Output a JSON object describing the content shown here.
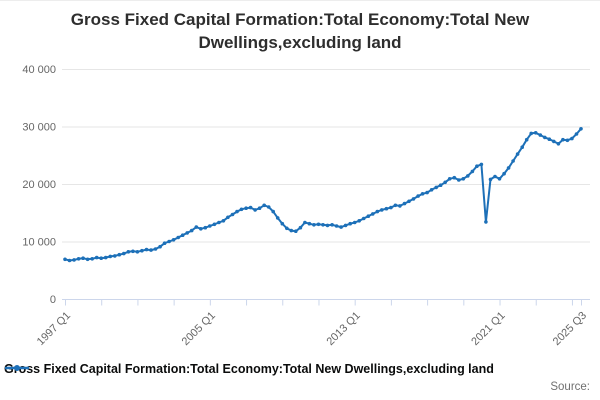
{
  "header": {
    "title_line1": "Gross Fixed Capital Formation:Total Economy:Total New",
    "title_line2": "Dwellings,excluding land"
  },
  "legend": {
    "label": "Gross Fixed Capital Formation:Total Economy:Total New Dwellings,excluding land"
  },
  "footer": {
    "source_label": "Source:"
  },
  "chart_data": {
    "type": "line",
    "title": "Gross Fixed Capital Formation:Total Economy:Total New Dwellings,excluding land",
    "xlabel": "",
    "ylabel": "",
    "ylim": [
      0,
      40000
    ],
    "grid": "horizontal",
    "legend_position": "bottom-left",
    "colors": {
      "line": "#1d70b8",
      "gridline": "#e6e6e6",
      "axis_line": "#ccd6eb",
      "axis_text": "#666666"
    },
    "y_ticks": [
      {
        "value": 0,
        "label": "0"
      },
      {
        "value": 10000,
        "label": "10 000"
      },
      {
        "value": 20000,
        "label": "20 000"
      },
      {
        "value": 30000,
        "label": "30 000"
      },
      {
        "value": 40000,
        "label": "40 000"
      }
    ],
    "x_ticks": [
      {
        "label": "1997 Q1",
        "index": 0
      },
      {
        "label": "2005 Q1",
        "index": 32
      },
      {
        "label": "2013 Q1",
        "index": 64
      },
      {
        "label": "2021 Q1",
        "index": 96
      },
      {
        "label": "2025 Q3",
        "index": 114
      }
    ],
    "minor_tick_every_quarters": 8,
    "quarters": [
      "1997 Q1",
      "1997 Q2",
      "1997 Q3",
      "1997 Q4",
      "1998 Q1",
      "1998 Q2",
      "1998 Q3",
      "1998 Q4",
      "1999 Q1",
      "1999 Q2",
      "1999 Q3",
      "1999 Q4",
      "2000 Q1",
      "2000 Q2",
      "2000 Q3",
      "2000 Q4",
      "2001 Q1",
      "2001 Q2",
      "2001 Q3",
      "2001 Q4",
      "2002 Q1",
      "2002 Q2",
      "2002 Q3",
      "2002 Q4",
      "2003 Q1",
      "2003 Q2",
      "2003 Q3",
      "2003 Q4",
      "2004 Q1",
      "2004 Q2",
      "2004 Q3",
      "2004 Q4",
      "2005 Q1",
      "2005 Q2",
      "2005 Q3",
      "2005 Q4",
      "2006 Q1",
      "2006 Q2",
      "2006 Q3",
      "2006 Q4",
      "2007 Q1",
      "2007 Q2",
      "2007 Q3",
      "2007 Q4",
      "2008 Q1",
      "2008 Q2",
      "2008 Q3",
      "2008 Q4",
      "2009 Q1",
      "2009 Q2",
      "2009 Q3",
      "2009 Q4",
      "2010 Q1",
      "2010 Q2",
      "2010 Q3",
      "2010 Q4",
      "2011 Q1",
      "2011 Q2",
      "2011 Q3",
      "2011 Q4",
      "2012 Q1",
      "2012 Q2",
      "2012 Q3",
      "2012 Q4",
      "2013 Q1",
      "2013 Q2",
      "2013 Q3",
      "2013 Q4",
      "2014 Q1",
      "2014 Q2",
      "2014 Q3",
      "2014 Q4",
      "2015 Q1",
      "2015 Q2",
      "2015 Q3",
      "2015 Q4",
      "2016 Q1",
      "2016 Q2",
      "2016 Q3",
      "2016 Q4",
      "2017 Q1",
      "2017 Q2",
      "2017 Q3",
      "2017 Q4",
      "2018 Q1",
      "2018 Q2",
      "2018 Q3",
      "2018 Q4",
      "2019 Q1",
      "2019 Q2",
      "2019 Q3",
      "2019 Q4",
      "2020 Q1",
      "2020 Q2",
      "2020 Q3",
      "2020 Q4",
      "2021 Q1",
      "2021 Q2",
      "2021 Q3",
      "2021 Q4",
      "2022 Q1",
      "2022 Q2",
      "2022 Q3",
      "2022 Q4",
      "2023 Q1",
      "2023 Q2",
      "2023 Q3",
      "2023 Q4",
      "2024 Q1",
      "2024 Q2",
      "2024 Q3",
      "2024 Q4",
      "2025 Q1",
      "2025 Q2",
      "2025 Q3"
    ],
    "series": [
      {
        "name": "Gross Fixed Capital Formation:Total Economy:Total New Dwellings,excluding land",
        "color": "#1d70b8",
        "values": [
          6900,
          6700,
          6800,
          7000,
          7100,
          6900,
          7000,
          7200,
          7100,
          7200,
          7400,
          7500,
          7700,
          7900,
          8200,
          8300,
          8200,
          8400,
          8600,
          8500,
          8700,
          9100,
          9700,
          10000,
          10300,
          10700,
          11100,
          11500,
          11900,
          12500,
          12200,
          12400,
          12700,
          13000,
          13300,
          13600,
          14200,
          14700,
          15200,
          15600,
          15800,
          15900,
          15500,
          15800,
          16300,
          16000,
          15200,
          14100,
          13100,
          12300,
          11900,
          11800,
          12400,
          13300,
          13100,
          12900,
          13000,
          12900,
          12800,
          12900,
          12700,
          12500,
          12800,
          13100,
          13300,
          13600,
          14000,
          14400,
          14800,
          15200,
          15500,
          15700,
          15900,
          16300,
          16200,
          16600,
          17000,
          17400,
          17900,
          18300,
          18500,
          19000,
          19400,
          19800,
          20300,
          20900,
          21100,
          20700,
          20900,
          21400,
          22200,
          23100,
          23400,
          13400,
          20800,
          21300,
          20900,
          21800,
          22800,
          24000,
          25200,
          26400,
          27700,
          28800,
          28900,
          28500,
          28100,
          27800,
          27400,
          27000,
          27700,
          27600,
          27900,
          28700,
          29600
        ]
      }
    ]
  }
}
